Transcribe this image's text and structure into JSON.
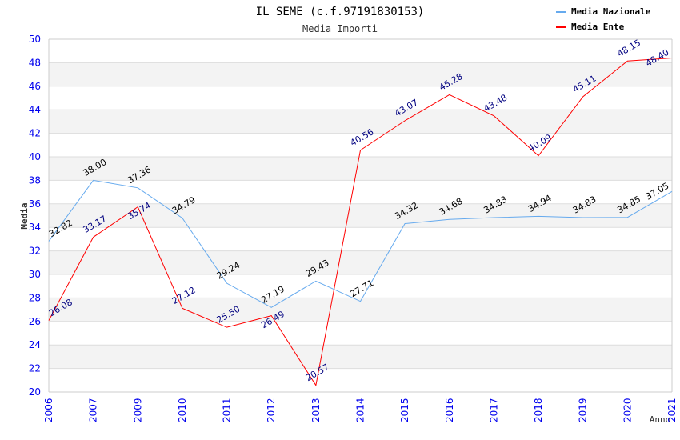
{
  "chart_data": {
    "type": "line",
    "title": "IL SEME (c.f.97191830153)",
    "subtitle": "Media Importi",
    "xlabel": "Anno",
    "ylabel": "Media",
    "ylim": [
      20,
      50
    ],
    "yticks": [
      "20",
      "22",
      "24",
      "26",
      "28",
      "30",
      "32",
      "34",
      "36",
      "38",
      "40",
      "42",
      "44",
      "46",
      "48",
      "50"
    ],
    "grid": true,
    "legend_placement": "top-right",
    "categories": [
      "2006",
      "2007",
      "2009",
      "2010",
      "2011",
      "2012",
      "2013",
      "2014",
      "2015",
      "2016",
      "2017",
      "2018",
      "2019",
      "2020",
      "2021"
    ],
    "series": [
      {
        "name": "Media Nazionale",
        "color": "#66aaee",
        "label_color": "#000000",
        "values": [
          32.82,
          38.0,
          37.36,
          34.79,
          29.24,
          27.19,
          29.43,
          27.71,
          34.32,
          34.68,
          34.83,
          34.94,
          34.83,
          34.85,
          37.05
        ],
        "labels": [
          "32.82",
          "38.00",
          "37.36",
          "34.79",
          "29.24",
          "27.19",
          "29.43",
          "27.71",
          "34.32",
          "34.68",
          "34.83",
          "34.94",
          "34.83",
          "34.85",
          "37.05"
        ]
      },
      {
        "name": "Media Ente",
        "color": "#ff0000",
        "label_color": "#000080",
        "values": [
          26.08,
          33.17,
          35.74,
          27.12,
          25.5,
          26.49,
          20.57,
          40.56,
          43.07,
          45.28,
          43.48,
          40.09,
          45.11,
          48.15,
          48.4
        ],
        "labels": [
          "26.08",
          "33.17",
          "35.74",
          "27.12",
          "25.50",
          "26.49",
          "20.57",
          "40.56",
          "43.07",
          "45.28",
          "43.48",
          "40.09",
          "45.11",
          "48.15",
          "48.40"
        ]
      }
    ]
  }
}
